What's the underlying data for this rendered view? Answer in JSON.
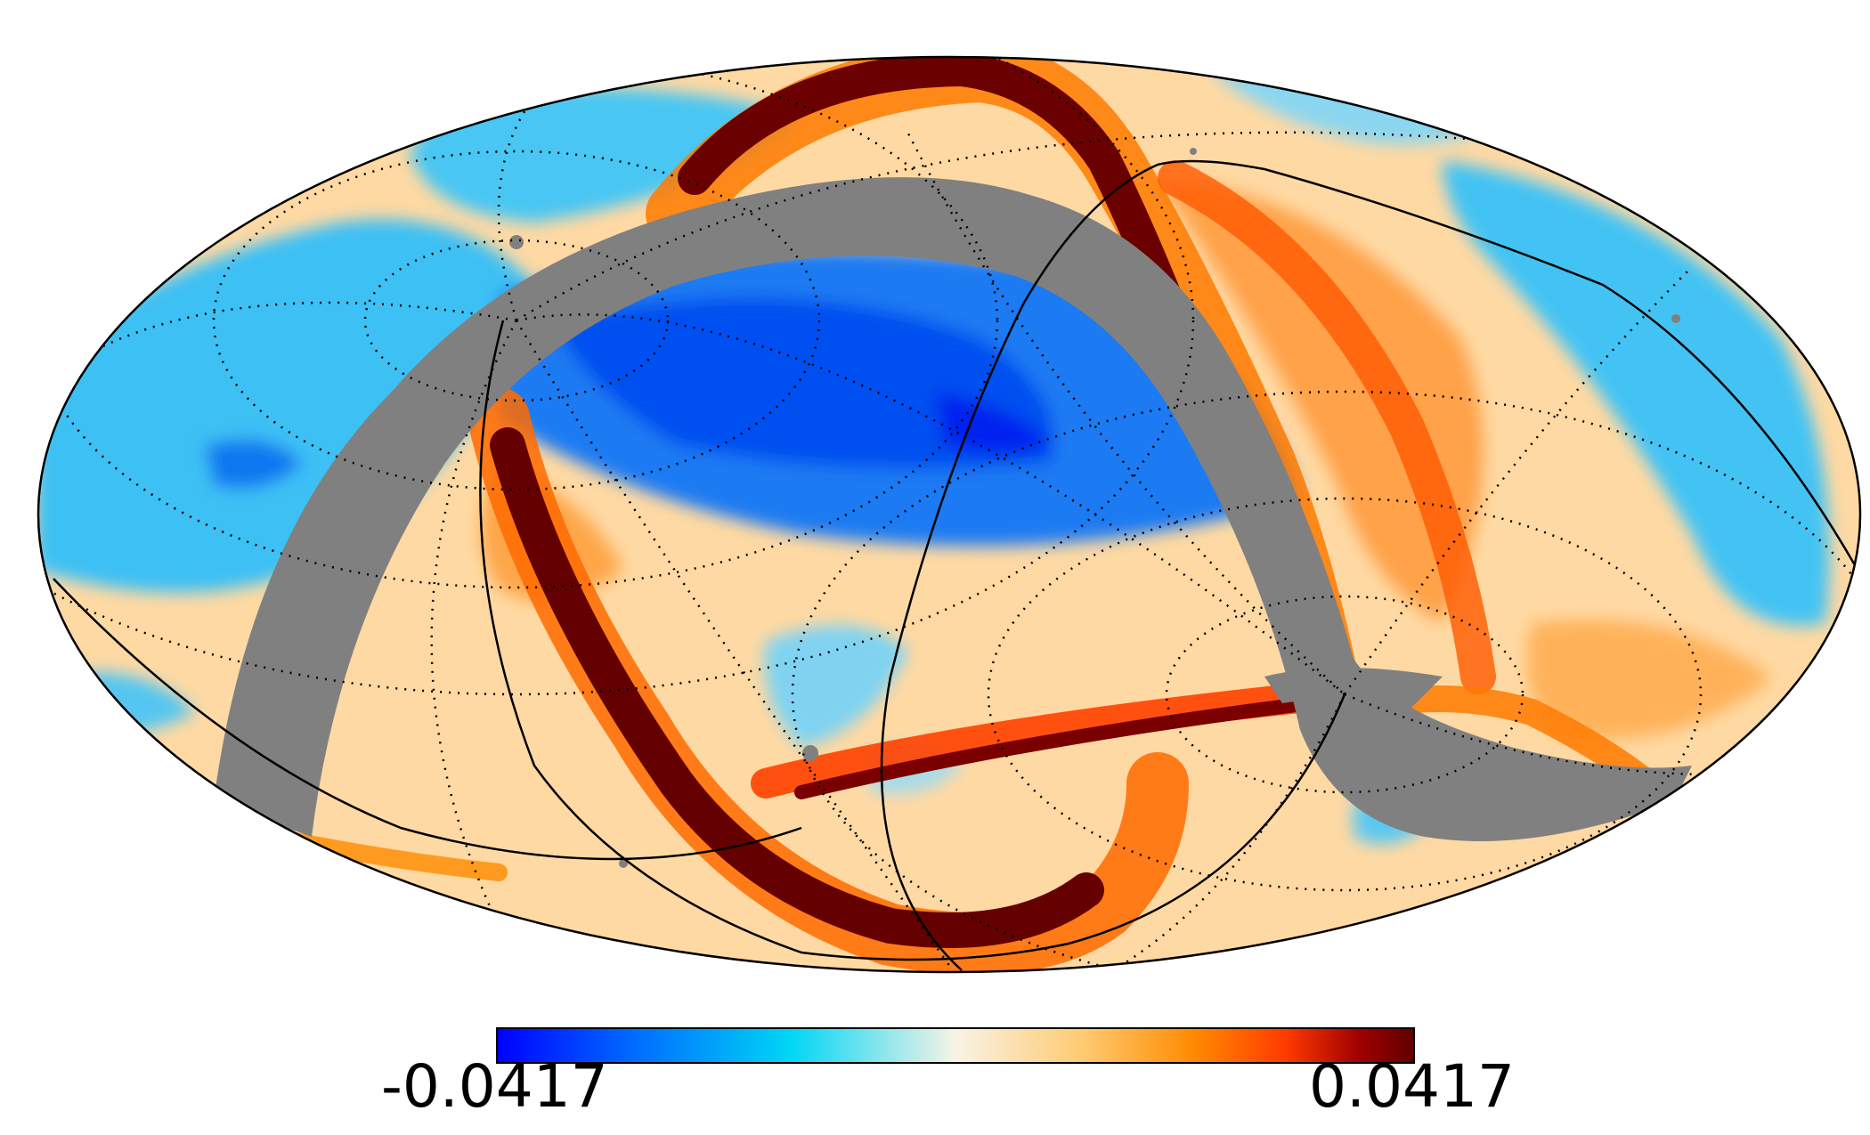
{
  "map": {
    "projection": "mollweide",
    "masked_color": "#808080",
    "graticule": "on",
    "colormap": [
      "#0000ff",
      "#006cff",
      "#00ccf5",
      "#f5f5ea",
      "#ffcc7a",
      "#ff8c00",
      "#ff3d00",
      "#990000",
      "#660000"
    ]
  },
  "colorbar": {
    "min_label": "-0.0417",
    "max_label": "0.0417",
    "min_value": -0.0417,
    "max_value": 0.0417
  }
}
